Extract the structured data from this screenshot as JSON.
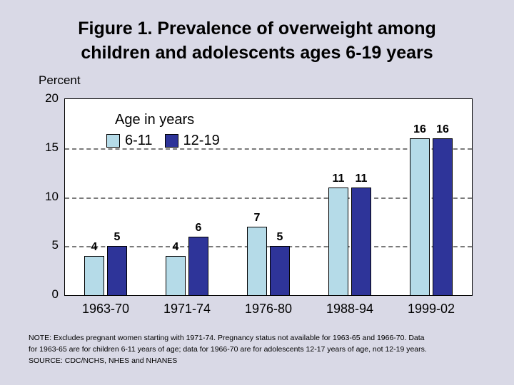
{
  "title": "Figure 1. Prevalence of overweight among children and adolescents ages 6-19 years",
  "chart_data": {
    "type": "bar",
    "title": "Figure 1. Prevalence of overweight among children and adolescents ages 6-19 years",
    "ylabel": "Percent",
    "ylim": [
      0,
      20
    ],
    "yticks": [
      0,
      5,
      10,
      15,
      20
    ],
    "grid": "dashed-horizontal",
    "legend_title": "Age in years",
    "legend_position": "top-left-inside",
    "categories": [
      "1963-70",
      "1971-74",
      "1976-80",
      "1988-94",
      "1999-02"
    ],
    "series": [
      {
        "name": "6-11",
        "color": "#b5dbe8",
        "values": [
          4,
          4,
          7,
          11,
          16
        ]
      },
      {
        "name": "12-19",
        "color": "#2e3499",
        "values": [
          5,
          6,
          5,
          11,
          16
        ]
      }
    ]
  },
  "notes": [
    "NOTE:  Excludes pregnant women starting with 1971-74.  Pregnancy status not available for 1963-65 and 1966-70.  Data",
    "for 1963-65 are for children 6-11 years of age; data for 1966-70 are for adolescents 12-17 years of age, not 12-19 years.",
    "SOURCE: CDC/NCHS, NHES and NHANES"
  ]
}
